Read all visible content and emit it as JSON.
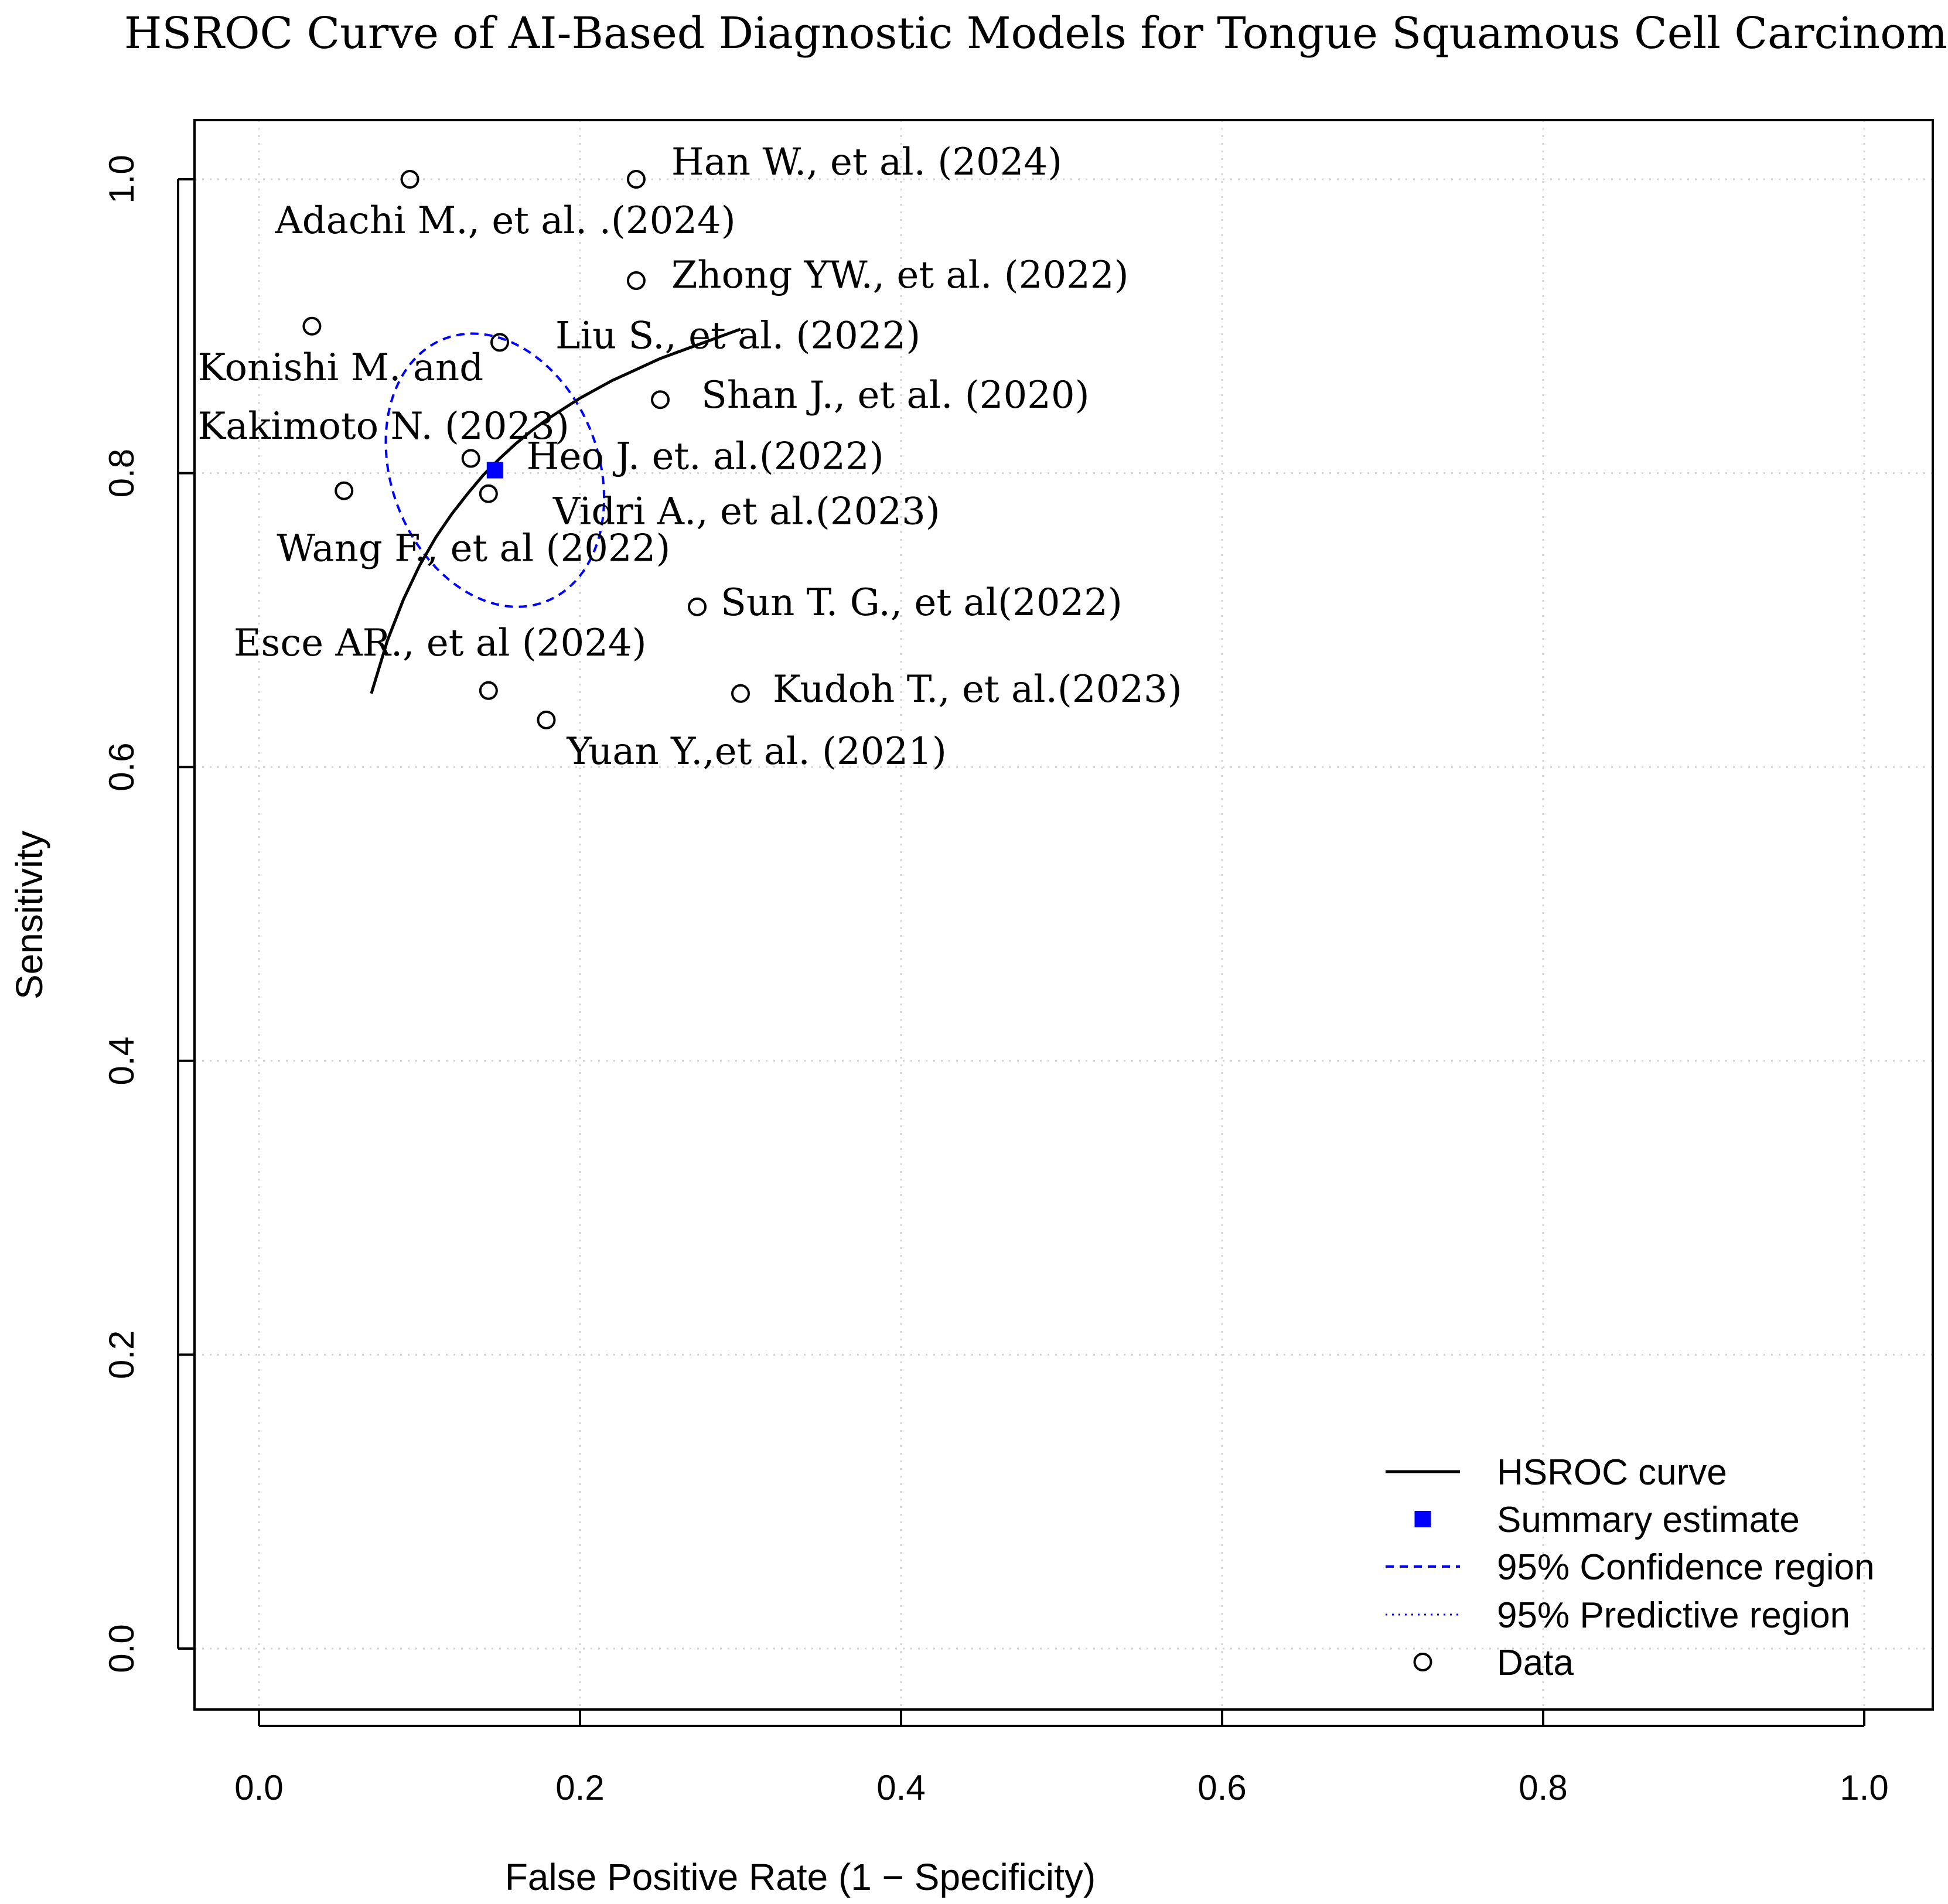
{
  "chart_data": {
    "type": "scatter",
    "title": "HSROC Curve of AI-Based Diagnostic Models for Tongue Squamous Cell Carcinoma",
    "xlabel": "False Positive Rate (1 − Specificity)",
    "ylabel": "Sensitivity",
    "xlim": [
      0,
      1
    ],
    "ylim": [
      0,
      1
    ],
    "xticks": [
      0.0,
      0.2,
      0.4,
      0.6,
      0.8,
      1.0
    ],
    "yticks": [
      0.0,
      0.2,
      0.4,
      0.6,
      0.8,
      1.0
    ],
    "xtick_labels": [
      "0.0",
      "0.2",
      "0.4",
      "0.6",
      "0.8",
      "1.0"
    ],
    "ytick_labels": [
      "0.0",
      "0.2",
      "0.4",
      "0.6",
      "0.8",
      "1.0"
    ],
    "grid": true,
    "studies": [
      {
        "label": "Han W., et al. (2024)",
        "fpr": 0.235,
        "sens": 1.0
      },
      {
        "label": "Adachi M., et al. .(2024)",
        "fpr": 0.094,
        "sens": 1.0
      },
      {
        "label": "Zhong YW., et al. (2022)",
        "fpr": 0.235,
        "sens": 0.931
      },
      {
        "label": "Liu S., et al. (2022)",
        "fpr": 0.15,
        "sens": 0.889
      },
      {
        "label": "Konishi M. and",
        "label2": "Kakimoto N. (2023)",
        "fpr": 0.033,
        "sens": 0.9
      },
      {
        "label": "Shan J., et al. (2020)",
        "fpr": 0.25,
        "sens": 0.85
      },
      {
        "label": "Heo J. et. al.(2022)",
        "fpr": 0.132,
        "sens": 0.81
      },
      {
        "label": "Vidri A., et al.(2023)",
        "fpr": 0.143,
        "sens": 0.786
      },
      {
        "label": "Wang F., et al (2022)",
        "fpr": 0.053,
        "sens": 0.788
      },
      {
        "label": "Sun T. G., et al(2022)",
        "fpr": 0.273,
        "sens": 0.709
      },
      {
        "label": "Esce AR., et al (2024)",
        "fpr": 0.143,
        "sens": 0.652
      },
      {
        "label": "Kudoh T., et al.(2023)",
        "fpr": 0.3,
        "sens": 0.65
      },
      {
        "label": "Yuan Y.,et al. (2021)",
        "fpr": 0.179,
        "sens": 0.632
      }
    ],
    "summary_estimate": {
      "fpr": 0.147,
      "sens": 0.802
    },
    "hsroc_curve": {
      "x": [
        0.07,
        0.08,
        0.09,
        0.1,
        0.11,
        0.12,
        0.13,
        0.14,
        0.15,
        0.16,
        0.17,
        0.18,
        0.19,
        0.2,
        0.21,
        0.22,
        0.23,
        0.24,
        0.25,
        0.26,
        0.27,
        0.28,
        0.29,
        0.3
      ],
      "y": [
        0.65,
        0.686,
        0.714,
        0.737,
        0.756,
        0.772,
        0.786,
        0.799,
        0.81,
        0.82,
        0.829,
        0.837,
        0.844,
        0.851,
        0.857,
        0.863,
        0.868,
        0.873,
        0.878,
        0.882,
        0.886,
        0.89,
        0.894,
        0.898
      ]
    },
    "confidence_region": {
      "center": [
        0.147,
        0.802
      ],
      "x_radius": 0.068,
      "y_radius": 0.091,
      "tilt_slope": -0.28
    },
    "legend": {
      "position": "bottom-right",
      "entries": [
        {
          "label": "HSROC curve",
          "symbol": "solid-line",
          "color": "#000000"
        },
        {
          "label": "Summary estimate",
          "symbol": "filled-square",
          "color": "#0000ff"
        },
        {
          "label": "95% Confidence region",
          "symbol": "dashed-line",
          "color": "#0000ff"
        },
        {
          "label": "95% Predictive region",
          "symbol": "dotted-line",
          "color": "#0000ff"
        },
        {
          "label": "Data",
          "symbol": "open-circle",
          "color": "#000000"
        }
      ]
    },
    "colors": {
      "curve": "#000000",
      "summary": "#0000ff",
      "region": "#0000ff",
      "grid": "#d3d3d3",
      "points": "#000000"
    }
  }
}
